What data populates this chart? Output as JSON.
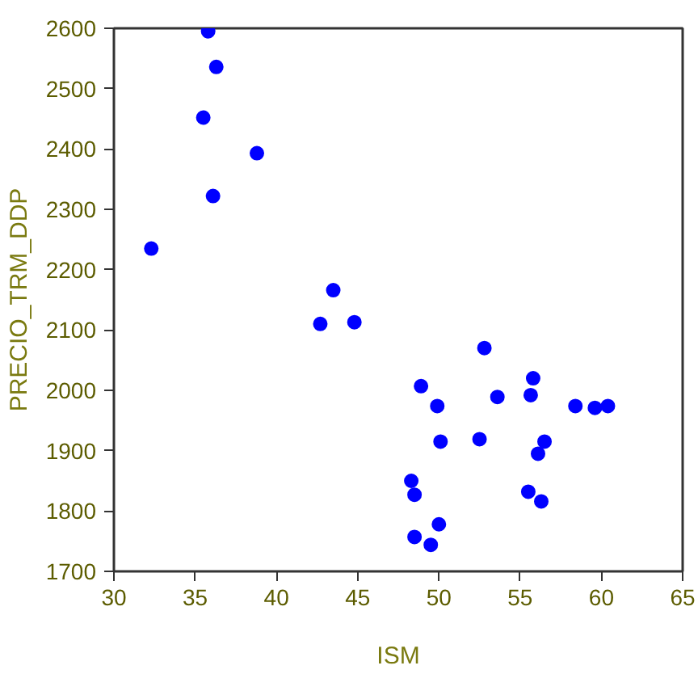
{
  "chart_data": {
    "type": "scatter",
    "xlabel": "ISM",
    "ylabel": "PRECIO_TRM_DDP",
    "x": [
      35.8,
      36.3,
      35.5,
      38.8,
      36.1,
      32.3,
      43.5,
      42.7,
      44.8,
      52.8,
      48.9,
      49.9,
      53.6,
      55.8,
      55.65,
      58.4,
      59.6,
      60.4,
      50.1,
      52.5,
      56.5,
      56.1,
      48.3,
      48.5,
      55.5,
      56.3,
      50,
      48.5,
      49.5
    ],
    "series": [
      {
        "color": "#0000ff",
        "values": [
          2595,
          2536,
          2452,
          2393,
          2322,
          2235,
          2166,
          2110,
          2113,
          2070,
          2007,
          1974,
          1989,
          2020,
          1992,
          1974,
          1971,
          1974,
          1915,
          1919,
          1915,
          1895,
          1850,
          1827,
          1832,
          1816,
          1778,
          1757,
          1744
        ]
      }
    ],
    "xlim": [
      30,
      65
    ],
    "ylim": [
      1700,
      2600
    ],
    "xticks": [
      30,
      35,
      40,
      45,
      50,
      55,
      60,
      65
    ],
    "yticks": [
      1700,
      1800,
      1900,
      2000,
      2100,
      2200,
      2300,
      2400,
      2500,
      2600
    ],
    "grid": false,
    "marker": "circle"
  }
}
